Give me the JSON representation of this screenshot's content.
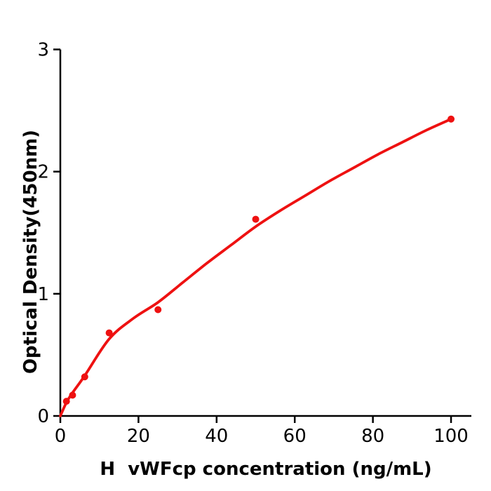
{
  "chart_data": {
    "type": "scatter",
    "xlabel": "H  vWFcp concentration (ng/mL)",
    "ylabel": "Optical Density(450nm)",
    "xlim": [
      0,
      105.2
    ],
    "ylim": [
      0,
      3
    ],
    "x_ticks": [
      0,
      20,
      40,
      60,
      80,
      100
    ],
    "y_ticks": [
      0,
      1,
      2,
      3
    ],
    "grid": false,
    "legend": null,
    "point_color": "#ee1111",
    "curve_color": "#ee1111",
    "axis_color": "#000000",
    "points": [
      {
        "x": 1.56,
        "y": 0.12
      },
      {
        "x": 3.13,
        "y": 0.17
      },
      {
        "x": 6.25,
        "y": 0.32
      },
      {
        "x": 12.5,
        "y": 0.68
      },
      {
        "x": 25,
        "y": 0.87
      },
      {
        "x": 50,
        "y": 1.61
      },
      {
        "x": 100,
        "y": 2.43
      }
    ],
    "fit_curve": [
      [
        0,
        0
      ],
      [
        1.56,
        0.11
      ],
      [
        3.13,
        0.19
      ],
      [
        6.25,
        0.33
      ],
      [
        12.5,
        0.63
      ],
      [
        18.75,
        0.8
      ],
      [
        25,
        0.93
      ],
      [
        31.25,
        1.09
      ],
      [
        37.5,
        1.25
      ],
      [
        43.75,
        1.4
      ],
      [
        50,
        1.55
      ],
      [
        56.25,
        1.68
      ],
      [
        62.5,
        1.8
      ],
      [
        68.75,
        1.92
      ],
      [
        75,
        2.03
      ],
      [
        81.25,
        2.14
      ],
      [
        87.5,
        2.24
      ],
      [
        93.75,
        2.34
      ],
      [
        100,
        2.43
      ]
    ]
  }
}
